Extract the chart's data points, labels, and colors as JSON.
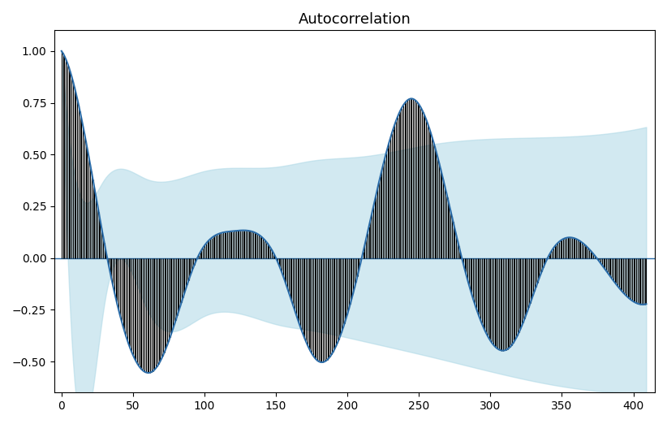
{
  "title": "Autocorrelation",
  "xlim": [
    -5,
    415
  ],
  "ylim": [
    -0.65,
    1.1
  ],
  "xticks": [
    0,
    50,
    100,
    150,
    200,
    250,
    300,
    350,
    400
  ],
  "yticks": [
    -0.5,
    -0.25,
    0.0,
    0.25,
    0.5,
    0.75,
    1.0
  ],
  "n_lags": 410,
  "acf_color": "#2b6ca8",
  "fill_color": "#000000",
  "conf_color": "#add8e6",
  "conf_alpha": 0.55,
  "hline_color": "#2b6ca8",
  "figsize": [
    8.22,
    5.22
  ],
  "dpi": 100,
  "title_fontsize": 13,
  "N": 500
}
